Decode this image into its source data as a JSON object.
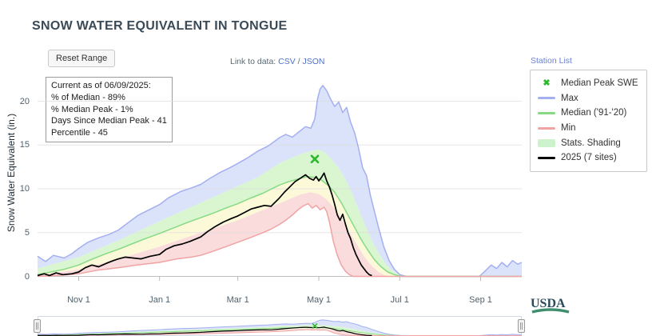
{
  "toolbar": {
    "reset_button": "Reset Range",
    "link_prefix": "Link to data:",
    "csv_label": "CSV",
    "separator": "/",
    "json_label": "JSON",
    "station_list": "Station List"
  },
  "info_box": {
    "lines": [
      "Current as of 06/09/2025:",
      "% of Median - 89%",
      "% Median Peak - 1%",
      "Days Since Median Peak - 41",
      "Percentile - 45"
    ]
  },
  "legend": {
    "items": [
      {
        "label": "Median Peak SWE",
        "symbol": "marker",
        "color": "#2eb82e"
      },
      {
        "label": "Max",
        "symbol": "line",
        "color": "#a3aff0"
      },
      {
        "label": "Median ('91-'20)",
        "symbol": "line",
        "color": "#86da86"
      },
      {
        "label": "Min",
        "symbol": "line",
        "color": "#f0a3a3"
      },
      {
        "label": "Stats. Shading",
        "symbol": "patch",
        "color": "#ccf3cc"
      },
      {
        "label": "2025 (7 sites)",
        "symbol": "line",
        "color": "#000000"
      }
    ]
  },
  "usda_label": "USDA",
  "chart_data": {
    "type": "line",
    "title": "SNOW WATER EQUIVALENT IN TONGUE",
    "ylabel": "Snow Water Equivalent (in.)",
    "x_unit": "days since Oct 1 (water year, Oct 1 - Sep 30)",
    "xlim": [
      0,
      365
    ],
    "ylim": [
      0,
      23.5
    ],
    "yticks": [
      0,
      5,
      10,
      15,
      20
    ],
    "xticks": [
      {
        "pos": 31,
        "label": "Nov 1"
      },
      {
        "pos": 92,
        "label": "Jan 1"
      },
      {
        "pos": 151,
        "label": "Mar 1"
      },
      {
        "pos": 212,
        "label": "May 1"
      },
      {
        "pos": 273,
        "label": "Jul 1"
      },
      {
        "pos": 334,
        "label": "Sep 1"
      }
    ],
    "marker": {
      "name": "Median Peak SWE",
      "x": 209,
      "y": 13.4,
      "color": "#2eb82e"
    },
    "bands": [
      {
        "name": "shading-p70-to-max",
        "upper": "max",
        "lower": "p70",
        "color": "#dbe3fb"
      },
      {
        "name": "shading-median-to-p70",
        "upper": "p70",
        "lower": "median",
        "color": "#d9f6d0"
      },
      {
        "name": "shading-p30-to-median",
        "upper": "median",
        "lower": "p30",
        "color": "#fcf9d9"
      },
      {
        "name": "shading-min-to-p30",
        "upper": "p30",
        "lower": "min",
        "color": "#fbdcdc"
      }
    ],
    "series": {
      "max": {
        "label": "Max",
        "color": "#a3aff0",
        "points": [
          [
            0,
            2.3
          ],
          [
            6,
            1.7
          ],
          [
            12,
            2.4
          ],
          [
            20,
            2.1
          ],
          [
            26,
            2.6
          ],
          [
            31,
            3.2
          ],
          [
            38,
            3.9
          ],
          [
            46,
            4.4
          ],
          [
            54,
            4.8
          ],
          [
            61,
            5.3
          ],
          [
            68,
            6.1
          ],
          [
            76,
            7.0
          ],
          [
            84,
            7.6
          ],
          [
            92,
            8.2
          ],
          [
            99,
            9.0
          ],
          [
            108,
            9.7
          ],
          [
            116,
            10.1
          ],
          [
            123,
            10.5
          ],
          [
            130,
            11.2
          ],
          [
            138,
            11.9
          ],
          [
            145,
            12.4
          ],
          [
            151,
            12.9
          ],
          [
            158,
            13.5
          ],
          [
            166,
            14.3
          ],
          [
            174,
            14.9
          ],
          [
            182,
            15.8
          ],
          [
            187,
            16.2
          ],
          [
            192,
            15.9
          ],
          [
            197,
            16.5
          ],
          [
            202,
            17.1
          ],
          [
            206,
            16.9
          ],
          [
            209,
            18.0
          ],
          [
            211,
            20.2
          ],
          [
            213,
            21.4
          ],
          [
            215,
            21.8
          ],
          [
            218,
            21.2
          ],
          [
            221,
            20.2
          ],
          [
            224,
            19.4
          ],
          [
            227,
            19.9
          ],
          [
            230,
            18.7
          ],
          [
            233,
            19.3
          ],
          [
            236,
            17.6
          ],
          [
            239,
            16.4
          ],
          [
            242,
            14.6
          ],
          [
            245,
            12.4
          ],
          [
            248,
            11.5
          ],
          [
            251,
            9.2
          ],
          [
            254,
            7.4
          ],
          [
            257,
            5.6
          ],
          [
            261,
            3.4
          ],
          [
            265,
            1.8
          ],
          [
            269,
            0.8
          ],
          [
            273,
            0.2
          ],
          [
            278,
            0
          ],
          [
            333,
            0
          ],
          [
            338,
            0.7
          ],
          [
            342,
            1.3
          ],
          [
            346,
            0.9
          ],
          [
            350,
            1.6
          ],
          [
            354,
            1.1
          ],
          [
            358,
            1.8
          ],
          [
            362,
            1.4
          ],
          [
            365,
            1.6
          ]
        ]
      },
      "p70": {
        "label": "70th percentile shading edge",
        "color": null,
        "points": [
          [
            0,
            0.9
          ],
          [
            31,
            2.2
          ],
          [
            61,
            4.1
          ],
          [
            92,
            6.3
          ],
          [
            123,
            8.4
          ],
          [
            151,
            10.3
          ],
          [
            167,
            11.4
          ],
          [
            182,
            12.9
          ],
          [
            191,
            13.5
          ],
          [
            199,
            14.0
          ],
          [
            206,
            14.3
          ],
          [
            212,
            14.5
          ],
          [
            217,
            14.1
          ],
          [
            222,
            13.3
          ],
          [
            227,
            12.4
          ],
          [
            232,
            11.1
          ],
          [
            237,
            9.5
          ],
          [
            242,
            7.6
          ],
          [
            247,
            5.8
          ],
          [
            252,
            4.1
          ],
          [
            257,
            2.7
          ],
          [
            262,
            1.5
          ],
          [
            267,
            0.7
          ],
          [
            272,
            0.2
          ],
          [
            277,
            0
          ],
          [
            365,
            0
          ]
        ]
      },
      "median": {
        "label": "Median ('91-'20)",
        "color": "#86da86",
        "points": [
          [
            0,
            0.2
          ],
          [
            10,
            0.5
          ],
          [
            20,
            0.8
          ],
          [
            31,
            1.3
          ],
          [
            40,
            1.9
          ],
          [
            50,
            2.5
          ],
          [
            61,
            3.1
          ],
          [
            71,
            3.7
          ],
          [
            81,
            4.3
          ],
          [
            92,
            4.9
          ],
          [
            102,
            5.5
          ],
          [
            112,
            6.1
          ],
          [
            123,
            6.7
          ],
          [
            132,
            7.2
          ],
          [
            142,
            7.8
          ],
          [
            151,
            8.3
          ],
          [
            160,
            8.9
          ],
          [
            170,
            9.5
          ],
          [
            182,
            10.4
          ],
          [
            189,
            10.8
          ],
          [
            196,
            11.1
          ],
          [
            203,
            11.4
          ],
          [
            209,
            11.3
          ],
          [
            214,
            11.0
          ],
          [
            219,
            10.4
          ],
          [
            224,
            9.6
          ],
          [
            229,
            8.4
          ],
          [
            234,
            7.0
          ],
          [
            239,
            5.6
          ],
          [
            244,
            4.2
          ],
          [
            249,
            3.0
          ],
          [
            254,
            1.9
          ],
          [
            259,
            1.1
          ],
          [
            264,
            0.5
          ],
          [
            269,
            0.2
          ],
          [
            274,
            0
          ],
          [
            365,
            0
          ]
        ]
      },
      "p30": {
        "label": "30th percentile shading edge",
        "color": null,
        "points": [
          [
            0,
            0.1
          ],
          [
            31,
            0.8
          ],
          [
            61,
            2.0
          ],
          [
            92,
            3.4
          ],
          [
            123,
            5.0
          ],
          [
            151,
            6.4
          ],
          [
            167,
            7.4
          ],
          [
            182,
            8.3
          ],
          [
            191,
            8.9
          ],
          [
            199,
            9.4
          ],
          [
            206,
            9.6
          ],
          [
            212,
            9.4
          ],
          [
            217,
            8.9
          ],
          [
            222,
            8.1
          ],
          [
            227,
            7.1
          ],
          [
            232,
            5.9
          ],
          [
            237,
            4.6
          ],
          [
            242,
            3.3
          ],
          [
            247,
            2.1
          ],
          [
            252,
            1.2
          ],
          [
            257,
            0.5
          ],
          [
            262,
            0.1
          ],
          [
            266,
            0
          ],
          [
            365,
            0
          ]
        ]
      },
      "min": {
        "label": "Min",
        "color": "#f0a3a3",
        "points": [
          [
            0,
            0
          ],
          [
            15,
            0.1
          ],
          [
            31,
            0.3
          ],
          [
            45,
            0.7
          ],
          [
            61,
            1.0
          ],
          [
            75,
            1.3
          ],
          [
            92,
            1.6
          ],
          [
            105,
            2.0
          ],
          [
            116,
            2.2
          ],
          [
            123,
            2.4
          ],
          [
            133,
            2.9
          ],
          [
            142,
            3.4
          ],
          [
            151,
            3.9
          ],
          [
            160,
            4.4
          ],
          [
            170,
            5.0
          ],
          [
            176,
            5.4
          ],
          [
            182,
            5.9
          ],
          [
            187,
            6.4
          ],
          [
            192,
            7.0
          ],
          [
            197,
            7.7
          ],
          [
            201,
            8.1
          ],
          [
            204,
            8.3
          ],
          [
            207,
            7.8
          ],
          [
            210,
            8.1
          ],
          [
            213,
            7.6
          ],
          [
            216,
            7.9
          ],
          [
            218,
            7.4
          ],
          [
            220,
            6.2
          ],
          [
            223,
            4.0
          ],
          [
            226,
            2.4
          ],
          [
            229,
            1.3
          ],
          [
            232,
            0.6
          ],
          [
            235,
            0.2
          ],
          [
            238,
            0
          ],
          [
            365,
            0
          ]
        ]
      },
      "y2025": {
        "label": "2025 (7 sites)",
        "color": "#000000",
        "points": [
          [
            0,
            0.1
          ],
          [
            5,
            0.3
          ],
          [
            9,
            0.1
          ],
          [
            14,
            0.4
          ],
          [
            19,
            0.2
          ],
          [
            26,
            0.3
          ],
          [
            31,
            0.5
          ],
          [
            36,
            1.0
          ],
          [
            41,
            1.3
          ],
          [
            46,
            1.1
          ],
          [
            52,
            1.5
          ],
          [
            57,
            1.8
          ],
          [
            61,
            2.0
          ],
          [
            66,
            2.2
          ],
          [
            72,
            2.1
          ],
          [
            78,
            2.0
          ],
          [
            85,
            2.3
          ],
          [
            92,
            2.5
          ],
          [
            97,
            3.1
          ],
          [
            103,
            3.5
          ],
          [
            109,
            3.7
          ],
          [
            115,
            4.0
          ],
          [
            123,
            4.5
          ],
          [
            128,
            5.1
          ],
          [
            134,
            5.7
          ],
          [
            140,
            6.2
          ],
          [
            146,
            6.6
          ],
          [
            151,
            6.9
          ],
          [
            156,
            7.3
          ],
          [
            161,
            7.7
          ],
          [
            166,
            7.9
          ],
          [
            171,
            8.1
          ],
          [
            176,
            8.0
          ],
          [
            182,
            8.9
          ],
          [
            186,
            9.6
          ],
          [
            190,
            10.2
          ],
          [
            194,
            10.8
          ],
          [
            198,
            11.2
          ],
          [
            202,
            11.6
          ],
          [
            205,
            11.2
          ],
          [
            208,
            11.0
          ],
          [
            210,
            11.4
          ],
          [
            212,
            10.9
          ],
          [
            214,
            11.3
          ],
          [
            216,
            11.8
          ],
          [
            218,
            10.9
          ],
          [
            220,
            10.2
          ],
          [
            222,
            9.3
          ],
          [
            224,
            8.2
          ],
          [
            226,
            7.0
          ],
          [
            228,
            6.4
          ],
          [
            230,
            7.1
          ],
          [
            232,
            6.0
          ],
          [
            234,
            5.0
          ],
          [
            236,
            4.3
          ],
          [
            238,
            3.3
          ],
          [
            240,
            2.5
          ],
          [
            242,
            1.9
          ],
          [
            244,
            1.3
          ],
          [
            246,
            0.9
          ],
          [
            248,
            0.5
          ],
          [
            250,
            0.2
          ],
          [
            252,
            0.1
          ]
        ]
      }
    },
    "grid": "horizontal only",
    "legend_position": "right"
  }
}
